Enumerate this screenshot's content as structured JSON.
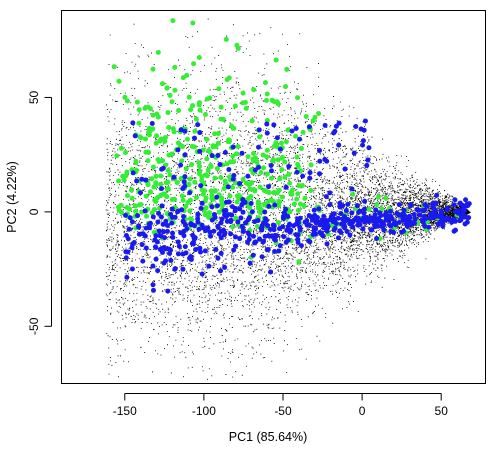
{
  "chart_data": {
    "type": "scatter",
    "xlabel": "PC1 (85.64%)",
    "ylabel": "PC2 (4.22%)",
    "xlim": [
      -190,
      78
    ],
    "ylim": [
      -75,
      88
    ],
    "xticks": [
      -150,
      -100,
      -50,
      0,
      50
    ],
    "yticks": [
      -50,
      0,
      50
    ],
    "xtick_labels": [
      "-150",
      "-100",
      "-50",
      "0",
      "50"
    ],
    "ytick_labels": [
      "-50",
      "0",
      "50"
    ],
    "grid": false,
    "colors": {
      "background": "#ffffff",
      "axes": "#000000",
      "series_black": "#000000",
      "series_green": "#33ee33",
      "series_blue": "#1a1aee"
    },
    "series": [
      {
        "color": "#000000",
        "marker": "dot",
        "approx_count": 9000,
        "shape": "fan-shaped cloud, dense core near (0..70, 0), tapering toward x=-160 and fanning to y from about -60 to 85"
      },
      {
        "color": "#33ee33",
        "marker": "filled-circle",
        "approx_count": 470,
        "shape": "concentrated on upper-left region (x -150..-40, y 0..85), sparse along y=0 to x=70"
      },
      {
        "color": "#1a1aee",
        "marker": "filled-circle",
        "approx_count": 620,
        "shape": "dense band along y -20..5 from x -150 to 70, with sparse points above"
      }
    ]
  }
}
